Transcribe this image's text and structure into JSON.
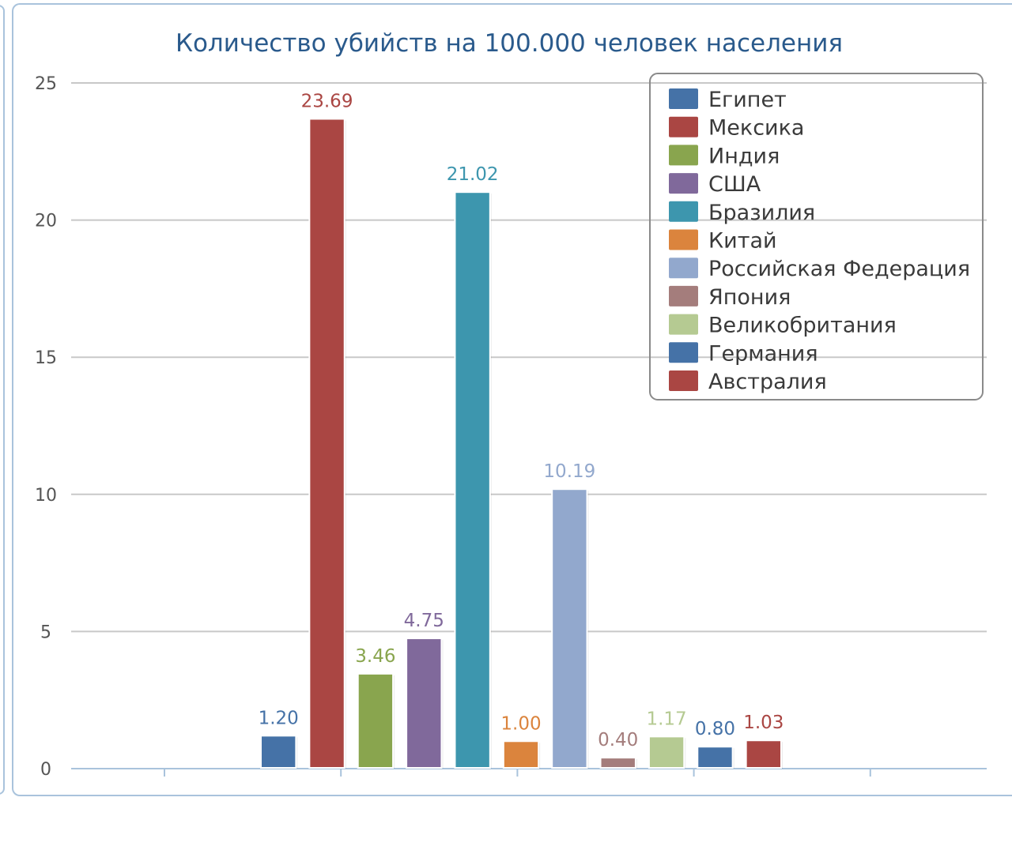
{
  "chart_data": {
    "type": "bar",
    "title": "Количество убийств на 100.000 человек населения",
    "xlabel": "",
    "ylabel": "",
    "ylim": [
      0,
      25
    ],
    "yticks": [
      0,
      5,
      10,
      15,
      20,
      25
    ],
    "grid": true,
    "legend_position": "top-right",
    "series": [
      {
        "name": "Египет",
        "value": 1.2,
        "label": "1.20",
        "color": "#4572a7"
      },
      {
        "name": "Мексика",
        "value": 23.69,
        "label": "23.69",
        "color": "#aa4643"
      },
      {
        "name": "Индия",
        "value": 3.46,
        "label": "3.46",
        "color": "#89a54e"
      },
      {
        "name": "США",
        "value": 4.75,
        "label": "4.75",
        "color": "#80699b"
      },
      {
        "name": "Бразилия",
        "value": 21.02,
        "label": "21.02",
        "color": "#3d96ae"
      },
      {
        "name": "Китай",
        "value": 1.0,
        "label": "1.00",
        "color": "#db843d"
      },
      {
        "name": "Российская Федерация",
        "value": 10.19,
        "label": "10.19",
        "color": "#92a8cd"
      },
      {
        "name": "Япония",
        "value": 0.4,
        "label": "0.40",
        "color": "#a47d7c"
      },
      {
        "name": "Великобритания",
        "value": 1.17,
        "label": "1.17",
        "color": "#b5ca92"
      },
      {
        "name": "Германия",
        "value": 0.8,
        "label": "0.80",
        "color": "#4572a7"
      },
      {
        "name": "Австралия",
        "value": 1.03,
        "label": "1.03",
        "color": "#aa4643"
      }
    ]
  }
}
